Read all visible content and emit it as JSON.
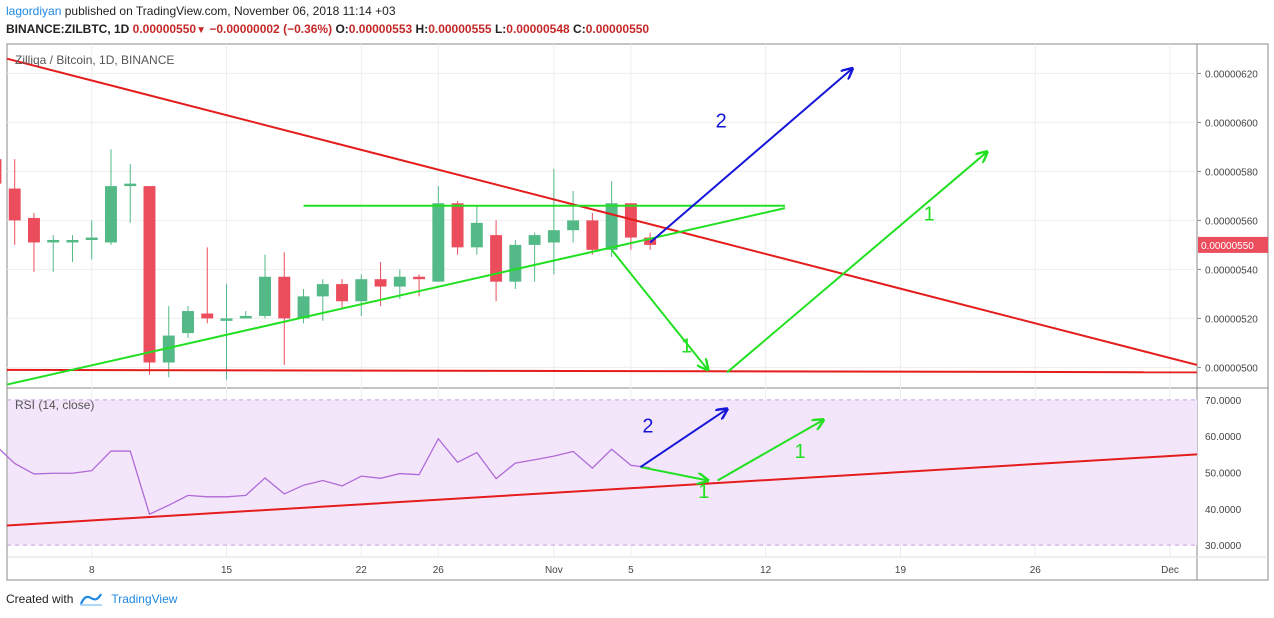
{
  "header": {
    "author": "lagordiyan",
    "published_text": "published on TradingView.com, November 06, 2018 11:14 +03",
    "symbol": "BINANCE:ZILBTC, 1D",
    "last": "0.00000550",
    "change": "−0.00000002 (−0.36%)",
    "open_label": "O:",
    "open": "0.00000553",
    "high_label": "H:",
    "high": "0.00000555",
    "low_label": "L:",
    "low": "0.00000548",
    "close_label": "C:",
    "close": "0.00000550"
  },
  "footer": {
    "created_with": "Created with",
    "brand": "TradingView"
  },
  "colors": {
    "up": "#53b987",
    "down": "#eb4d5c",
    "trend_red": "#e51c1c",
    "annot_green": "#21e021",
    "annot_blue": "#1515d8",
    "rsi_line": "#b06ad8",
    "rsi_band": "#f3e6fb",
    "price_tag": "#eb4d5c"
  },
  "chart_data": [
    {
      "type": "candlestick",
      "title": "Zilliqa / Bitcoin, 1D, BINANCE",
      "ylim": [
        4.92e-06,
        6.32e-06
      ],
      "y_ticks": [
        "0.00000500",
        "0.00000520",
        "0.00000540",
        "0.00000560",
        "0.00000580",
        "0.00000600",
        "0.00000620"
      ],
      "y_tick_values": [
        5e-06,
        5.2e-06,
        5.4e-06,
        5.6e-06,
        5.8e-06,
        6e-06,
        6.2e-06
      ],
      "last_price_tag": "0.00000550",
      "x_tick_labels": [
        "8",
        "15",
        "22",
        "26",
        "Nov",
        "5",
        "12",
        "19",
        "26",
        "Dec"
      ],
      "x_tick_index": [
        5,
        12,
        19,
        23,
        29,
        33,
        40,
        47,
        54,
        61
      ],
      "index_range": [
        0.6,
        62.4
      ],
      "candles": [
        {
          "i": 0,
          "o": 5.85,
          "h": 5.86,
          "l": 5.56,
          "c": 5.75
        },
        {
          "i": 1,
          "o": 5.73,
          "h": 5.85,
          "l": 5.5,
          "c": 5.6
        },
        {
          "i": 2,
          "o": 5.61,
          "h": 5.63,
          "l": 5.39,
          "c": 5.51
        },
        {
          "i": 3,
          "o": 5.51,
          "h": 5.54,
          "l": 5.39,
          "c": 5.52
        },
        {
          "i": 4,
          "o": 5.51,
          "h": 5.54,
          "l": 5.43,
          "c": 5.52
        },
        {
          "i": 5,
          "o": 5.52,
          "h": 5.6,
          "l": 5.44,
          "c": 5.53
        },
        {
          "i": 6,
          "o": 5.51,
          "h": 5.89,
          "l": 5.5,
          "c": 5.74
        },
        {
          "i": 7,
          "o": 5.74,
          "h": 5.83,
          "l": 5.59,
          "c": 5.75
        },
        {
          "i": 8,
          "o": 5.74,
          "h": 5.74,
          "l": 4.97,
          "c": 5.02
        },
        {
          "i": 9,
          "o": 5.02,
          "h": 5.25,
          "l": 4.96,
          "c": 5.13
        },
        {
          "i": 10,
          "o": 5.14,
          "h": 5.25,
          "l": 5.12,
          "c": 5.23
        },
        {
          "i": 11,
          "o": 5.22,
          "h": 5.49,
          "l": 5.18,
          "c": 5.2
        },
        {
          "i": 12,
          "o": 5.19,
          "h": 5.34,
          "l": 4.95,
          "c": 5.2
        },
        {
          "i": 13,
          "o": 5.2,
          "h": 5.23,
          "l": 5.2,
          "c": 5.21
        },
        {
          "i": 14,
          "o": 5.21,
          "h": 5.46,
          "l": 5.2,
          "c": 5.37
        },
        {
          "i": 15,
          "o": 5.37,
          "h": 5.47,
          "l": 5.01,
          "c": 5.2
        },
        {
          "i": 16,
          "o": 5.2,
          "h": 5.32,
          "l": 5.18,
          "c": 5.29
        },
        {
          "i": 17,
          "o": 5.29,
          "h": 5.36,
          "l": 5.19,
          "c": 5.34
        },
        {
          "i": 18,
          "o": 5.34,
          "h": 5.36,
          "l": 5.24,
          "c": 5.27
        },
        {
          "i": 19,
          "o": 5.27,
          "h": 5.38,
          "l": 5.21,
          "c": 5.36
        },
        {
          "i": 20,
          "o": 5.36,
          "h": 5.43,
          "l": 5.25,
          "c": 5.33
        },
        {
          "i": 21,
          "o": 5.33,
          "h": 5.4,
          "l": 5.28,
          "c": 5.37
        },
        {
          "i": 22,
          "o": 5.37,
          "h": 5.38,
          "l": 5.29,
          "c": 5.36
        },
        {
          "i": 23,
          "o": 5.35,
          "h": 5.74,
          "l": 5.35,
          "c": 5.67
        },
        {
          "i": 24,
          "o": 5.67,
          "h": 5.68,
          "l": 5.46,
          "c": 5.49
        },
        {
          "i": 25,
          "o": 5.49,
          "h": 5.66,
          "l": 5.46,
          "c": 5.59
        },
        {
          "i": 26,
          "o": 5.54,
          "h": 5.6,
          "l": 5.27,
          "c": 5.35
        },
        {
          "i": 27,
          "o": 5.35,
          "h": 5.52,
          "l": 5.32,
          "c": 5.5
        },
        {
          "i": 28,
          "o": 5.5,
          "h": 5.55,
          "l": 5.35,
          "c": 5.54
        },
        {
          "i": 29,
          "o": 5.51,
          "h": 5.81,
          "l": 5.38,
          "c": 5.56
        },
        {
          "i": 30,
          "o": 5.56,
          "h": 5.72,
          "l": 5.51,
          "c": 5.6
        },
        {
          "i": 31,
          "o": 5.6,
          "h": 5.63,
          "l": 5.46,
          "c": 5.48
        },
        {
          "i": 32,
          "o": 5.48,
          "h": 5.76,
          "l": 5.45,
          "c": 5.67
        },
        {
          "i": 33,
          "o": 5.67,
          "h": 5.67,
          "l": 5.48,
          "c": 5.53
        },
        {
          "i": 34,
          "o": 5.53,
          "h": 5.55,
          "l": 5.48,
          "c": 5.5
        }
      ]
    },
    {
      "type": "line",
      "title": "RSI (14, close)",
      "ylim": [
        27,
        73
      ],
      "y_ticks": [
        "30.0000",
        "40.0000",
        "50.0000",
        "60.0000",
        "70.0000"
      ],
      "y_tick_values": [
        30,
        40,
        50,
        60,
        70
      ],
      "band": [
        30,
        70
      ],
      "series": [
        {
          "x": [
            0,
            1,
            2,
            3,
            4,
            5,
            6,
            7,
            8,
            9,
            10,
            11,
            12,
            13,
            14,
            15,
            16,
            17,
            18,
            19,
            20,
            21,
            22,
            23,
            24,
            25,
            26,
            27,
            28,
            29,
            30,
            31,
            32,
            33,
            34
          ],
          "values": [
            57.5,
            52.5,
            49.6,
            49.8,
            49.8,
            50.5,
            55.9,
            55.9,
            38.5,
            41.0,
            43.7,
            43.3,
            43.3,
            43.7,
            48.5,
            44.1,
            46.5,
            47.8,
            46.3,
            49.0,
            48.4,
            49.7,
            49.4,
            59.3,
            52.8,
            55.5,
            48.3,
            52.6,
            53.5,
            54.5,
            55.8,
            51.2,
            56.4,
            52.0,
            51.3
          ]
        }
      ]
    }
  ],
  "annotations": {
    "labels": [
      "2",
      "1",
      "1",
      "2",
      "1",
      "1"
    ]
  }
}
